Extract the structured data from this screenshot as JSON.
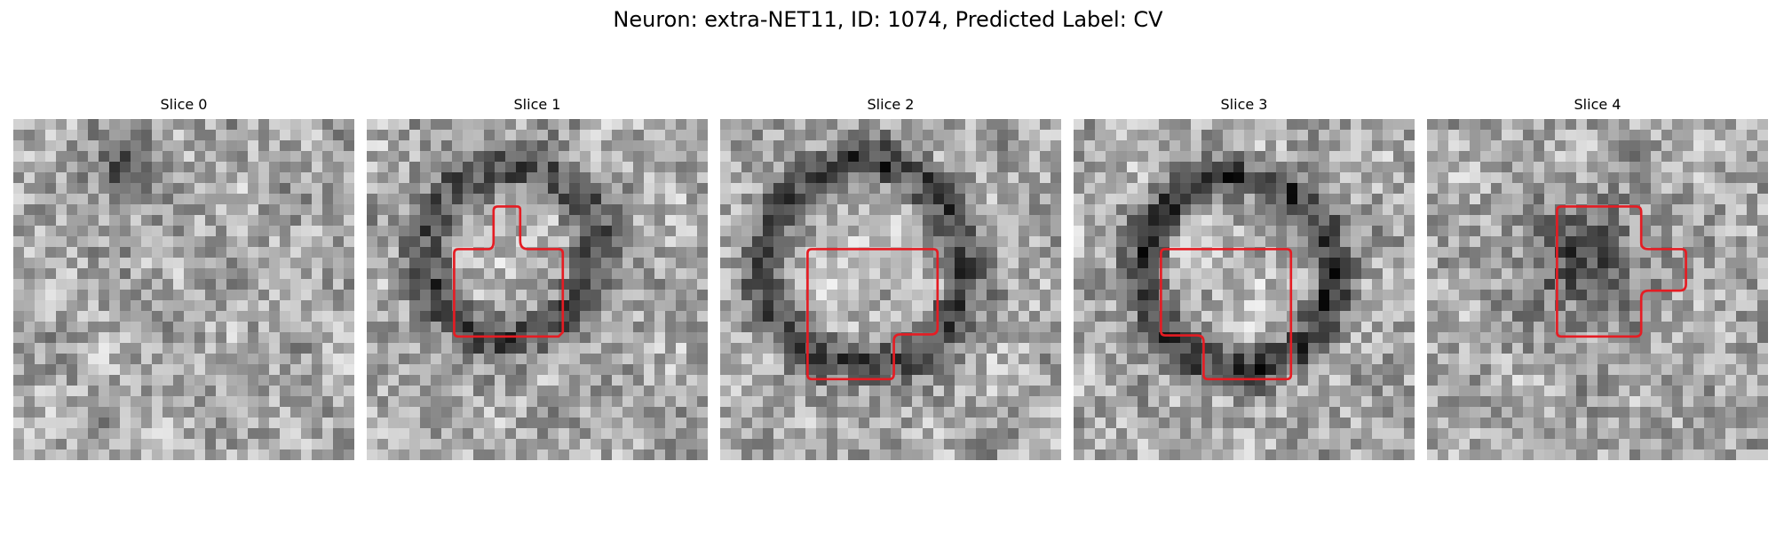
{
  "figure": {
    "title": "Neuron: extra-NET11, ID: 1074, Predicted Label: CV"
  },
  "colors": {
    "background": "#ffffff",
    "outline": "#e51c23"
  },
  "colormap": "gray",
  "slices": [
    {
      "label": "Slice 0",
      "has_outline": false
    },
    {
      "label": "Slice 1",
      "has_outline": true
    },
    {
      "label": "Slice 2",
      "has_outline": true
    },
    {
      "label": "Slice 3",
      "has_outline": true
    },
    {
      "label": "Slice 4",
      "has_outline": true
    }
  ]
}
